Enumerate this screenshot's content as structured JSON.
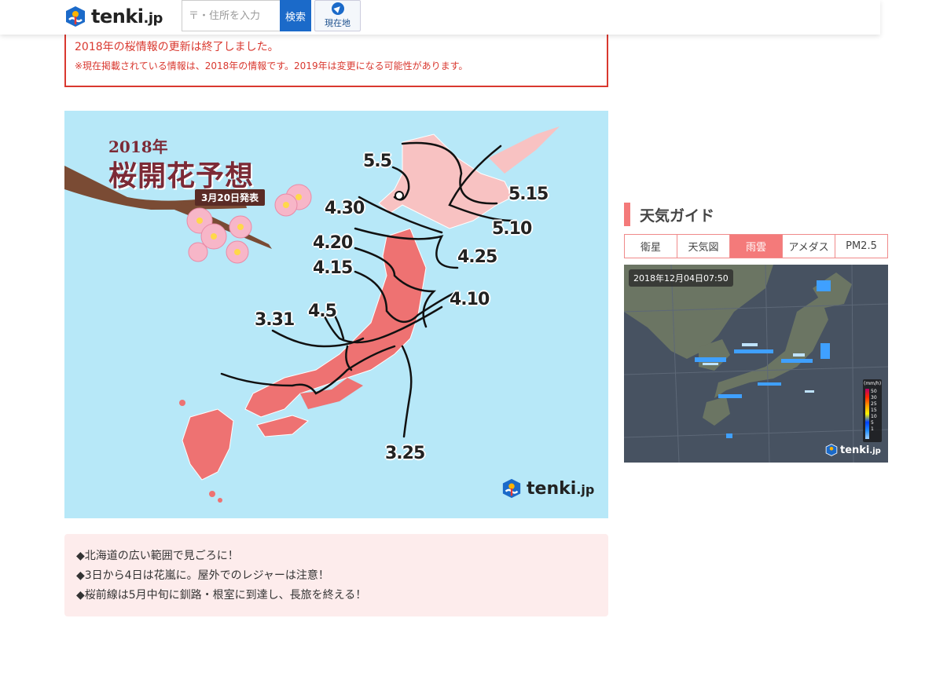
{
  "header": {
    "logo_text": "tenki",
    "logo_suffix": ".jp",
    "search_placeholder": "〒・住所を入力",
    "search_button": "検索",
    "location_button": "現在地"
  },
  "notice": {
    "line1": "2018年の桜情報の更新は終了しました。",
    "line2": "※現在掲載されている情報は、2018年の情報です。2019年は変更になる可能性があります。"
  },
  "map": {
    "year": "2018年",
    "title": "桜開花予想",
    "date": "3月20日発表",
    "labels": [
      "5.5",
      "5.15",
      "5.10",
      "4.30",
      "4.25",
      "4.20",
      "4.15",
      "4.10",
      "4.5",
      "3.31",
      "3.25"
    ],
    "logo_text": "tenki",
    "logo_suffix": ".jp"
  },
  "info": {
    "items": [
      "◆北海道の広い範囲で見ごろに！",
      "◆3日から4日は花嵐に。屋外でのレジャーは注意！",
      "◆桜前線は5月中旬に釧路・根室に到達し、長旅を終える！"
    ]
  },
  "sidebar": {
    "guide_title": "天気ガイド",
    "tabs": [
      "衛星",
      "天気図",
      "雨雲",
      "アメダス",
      "PM2.5"
    ],
    "active_tab": "雨雲",
    "radar_time": "2018年12月04日07:50",
    "legend_unit": "(mm/h)",
    "legend_values": [
      "50",
      "30",
      "25",
      "15",
      "10",
      "5",
      "1"
    ],
    "logo_text": "tenki",
    "logo_suffix": ".jp"
  },
  "colors": {
    "accent_blue": "#1b6ac9",
    "notice_red": "#d9382f",
    "guide_pink": "#f47a7a",
    "map_sea": "#b7e8f8",
    "japan_fill": "#ee7272",
    "hokkaido_fill": "#f8b9b9"
  }
}
